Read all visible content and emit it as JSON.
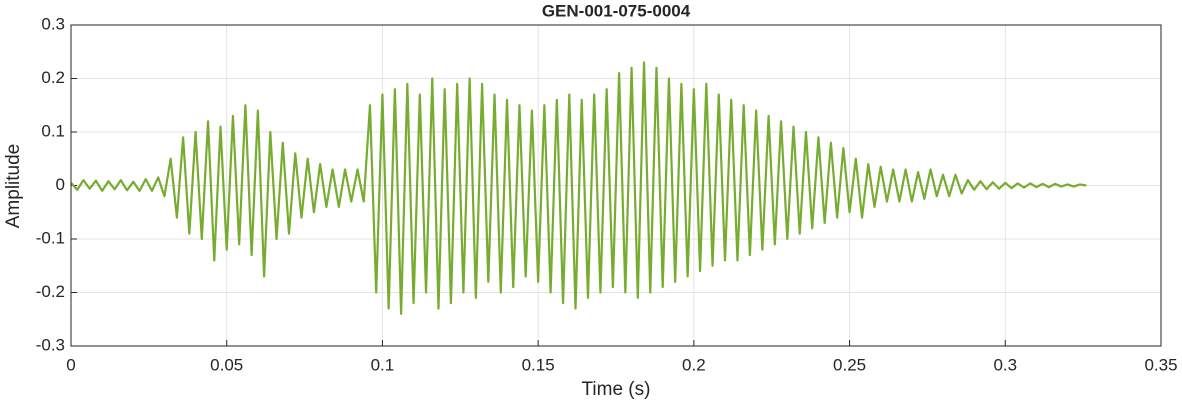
{
  "chart_data": {
    "type": "line",
    "title": "GEN-001-075-0004",
    "x_label": "Time (s)",
    "y_label": "Amplitude",
    "xlim": [
      0,
      0.35
    ],
    "xticks": [
      0,
      0.05,
      0.1,
      0.15,
      0.2,
      0.25,
      0.3,
      0.35
    ],
    "ylim": [
      -0.3,
      0.3
    ],
    "yticks": [
      -0.3,
      -0.2,
      -0.1,
      0,
      0.1,
      0.2,
      0.3
    ],
    "grid": true,
    "x": [
      0,
      0.002,
      0.004,
      0.006,
      0.008,
      0.01,
      0.012,
      0.014,
      0.016,
      0.018,
      0.02,
      0.022,
      0.024,
      0.026,
      0.028,
      0.03,
      0.032,
      0.034,
      0.036,
      0.038,
      0.04,
      0.042,
      0.044,
      0.046,
      0.048,
      0.05,
      0.052,
      0.054,
      0.056,
      0.058,
      0.06,
      0.062,
      0.064,
      0.066,
      0.068,
      0.07,
      0.072,
      0.074,
      0.076,
      0.078,
      0.08,
      0.082,
      0.084,
      0.086,
      0.088,
      0.09,
      0.092,
      0.094,
      0.096,
      0.098,
      0.1,
      0.102,
      0.104,
      0.106,
      0.108,
      0.11,
      0.112,
      0.114,
      0.116,
      0.118,
      0.12,
      0.122,
      0.124,
      0.126,
      0.128,
      0.13,
      0.132,
      0.134,
      0.136,
      0.138,
      0.14,
      0.142,
      0.144,
      0.146,
      0.148,
      0.15,
      0.152,
      0.154,
      0.156,
      0.158,
      0.16,
      0.162,
      0.164,
      0.166,
      0.168,
      0.17,
      0.172,
      0.174,
      0.176,
      0.178,
      0.18,
      0.182,
      0.184,
      0.186,
      0.188,
      0.19,
      0.192,
      0.194,
      0.196,
      0.198,
      0.2,
      0.202,
      0.204,
      0.206,
      0.208,
      0.21,
      0.212,
      0.214,
      0.216,
      0.218,
      0.22,
      0.222,
      0.224,
      0.226,
      0.228,
      0.23,
      0.232,
      0.234,
      0.236,
      0.238,
      0.24,
      0.242,
      0.244,
      0.246,
      0.248,
      0.25,
      0.252,
      0.254,
      0.256,
      0.258,
      0.26,
      0.262,
      0.264,
      0.266,
      0.268,
      0.27,
      0.272,
      0.274,
      0.276,
      0.278,
      0.28,
      0.282,
      0.284,
      0.286,
      0.288,
      0.29,
      0.292,
      0.294,
      0.296,
      0.298,
      0.3,
      0.302,
      0.304,
      0.306,
      0.308,
      0.31,
      0.312,
      0.314,
      0.316,
      0.318,
      0.32,
      0.322,
      0.324,
      0.326
    ],
    "series": [
      {
        "color": "#77ac30",
        "values": [
          0.005,
          -0.008,
          0.01,
          -0.006,
          0.009,
          -0.01,
          0.008,
          -0.007,
          0.01,
          -0.009,
          0.007,
          -0.01,
          0.012,
          -0.01,
          0.015,
          -0.02,
          0.05,
          -0.06,
          0.09,
          -0.09,
          0.1,
          -0.1,
          0.12,
          -0.14,
          0.11,
          -0.12,
          0.13,
          -0.11,
          0.15,
          -0.13,
          0.14,
          -0.17,
          0.1,
          -0.1,
          0.08,
          -0.09,
          0.06,
          -0.06,
          0.05,
          -0.05,
          0.04,
          -0.04,
          0.03,
          -0.04,
          0.03,
          -0.03,
          0.03,
          -0.03,
          0.15,
          -0.2,
          0.17,
          -0.23,
          0.18,
          -0.24,
          0.19,
          -0.22,
          0.17,
          -0.2,
          0.2,
          -0.23,
          0.18,
          -0.22,
          0.19,
          -0.2,
          0.2,
          -0.21,
          0.19,
          -0.18,
          0.17,
          -0.2,
          0.16,
          -0.19,
          0.15,
          -0.17,
          0.14,
          -0.18,
          0.15,
          -0.2,
          0.16,
          -0.22,
          0.17,
          -0.23,
          0.16,
          -0.21,
          0.17,
          -0.2,
          0.18,
          -0.19,
          0.21,
          -0.2,
          0.22,
          -0.21,
          0.23,
          -0.2,
          0.22,
          -0.19,
          0.2,
          -0.18,
          0.19,
          -0.17,
          0.18,
          -0.16,
          0.19,
          -0.15,
          0.17,
          -0.14,
          0.16,
          -0.14,
          0.15,
          -0.13,
          0.14,
          -0.12,
          0.13,
          -0.11,
          0.12,
          -0.1,
          0.11,
          -0.09,
          0.1,
          -0.08,
          0.09,
          -0.07,
          0.08,
          -0.06,
          0.07,
          -0.05,
          0.05,
          -0.06,
          0.04,
          -0.04,
          0.035,
          -0.03,
          0.03,
          -0.03,
          0.03,
          -0.03,
          0.025,
          -0.025,
          0.03,
          -0.02,
          0.02,
          -0.02,
          0.02,
          -0.015,
          0.01,
          -0.008,
          0.008,
          -0.007,
          0.006,
          -0.006,
          0.005,
          -0.005,
          0.004,
          -0.004,
          0.004,
          -0.003,
          0.003,
          -0.003,
          0.003,
          -0.002,
          0.002,
          -0.002,
          0.002,
          0
        ]
      }
    ]
  }
}
